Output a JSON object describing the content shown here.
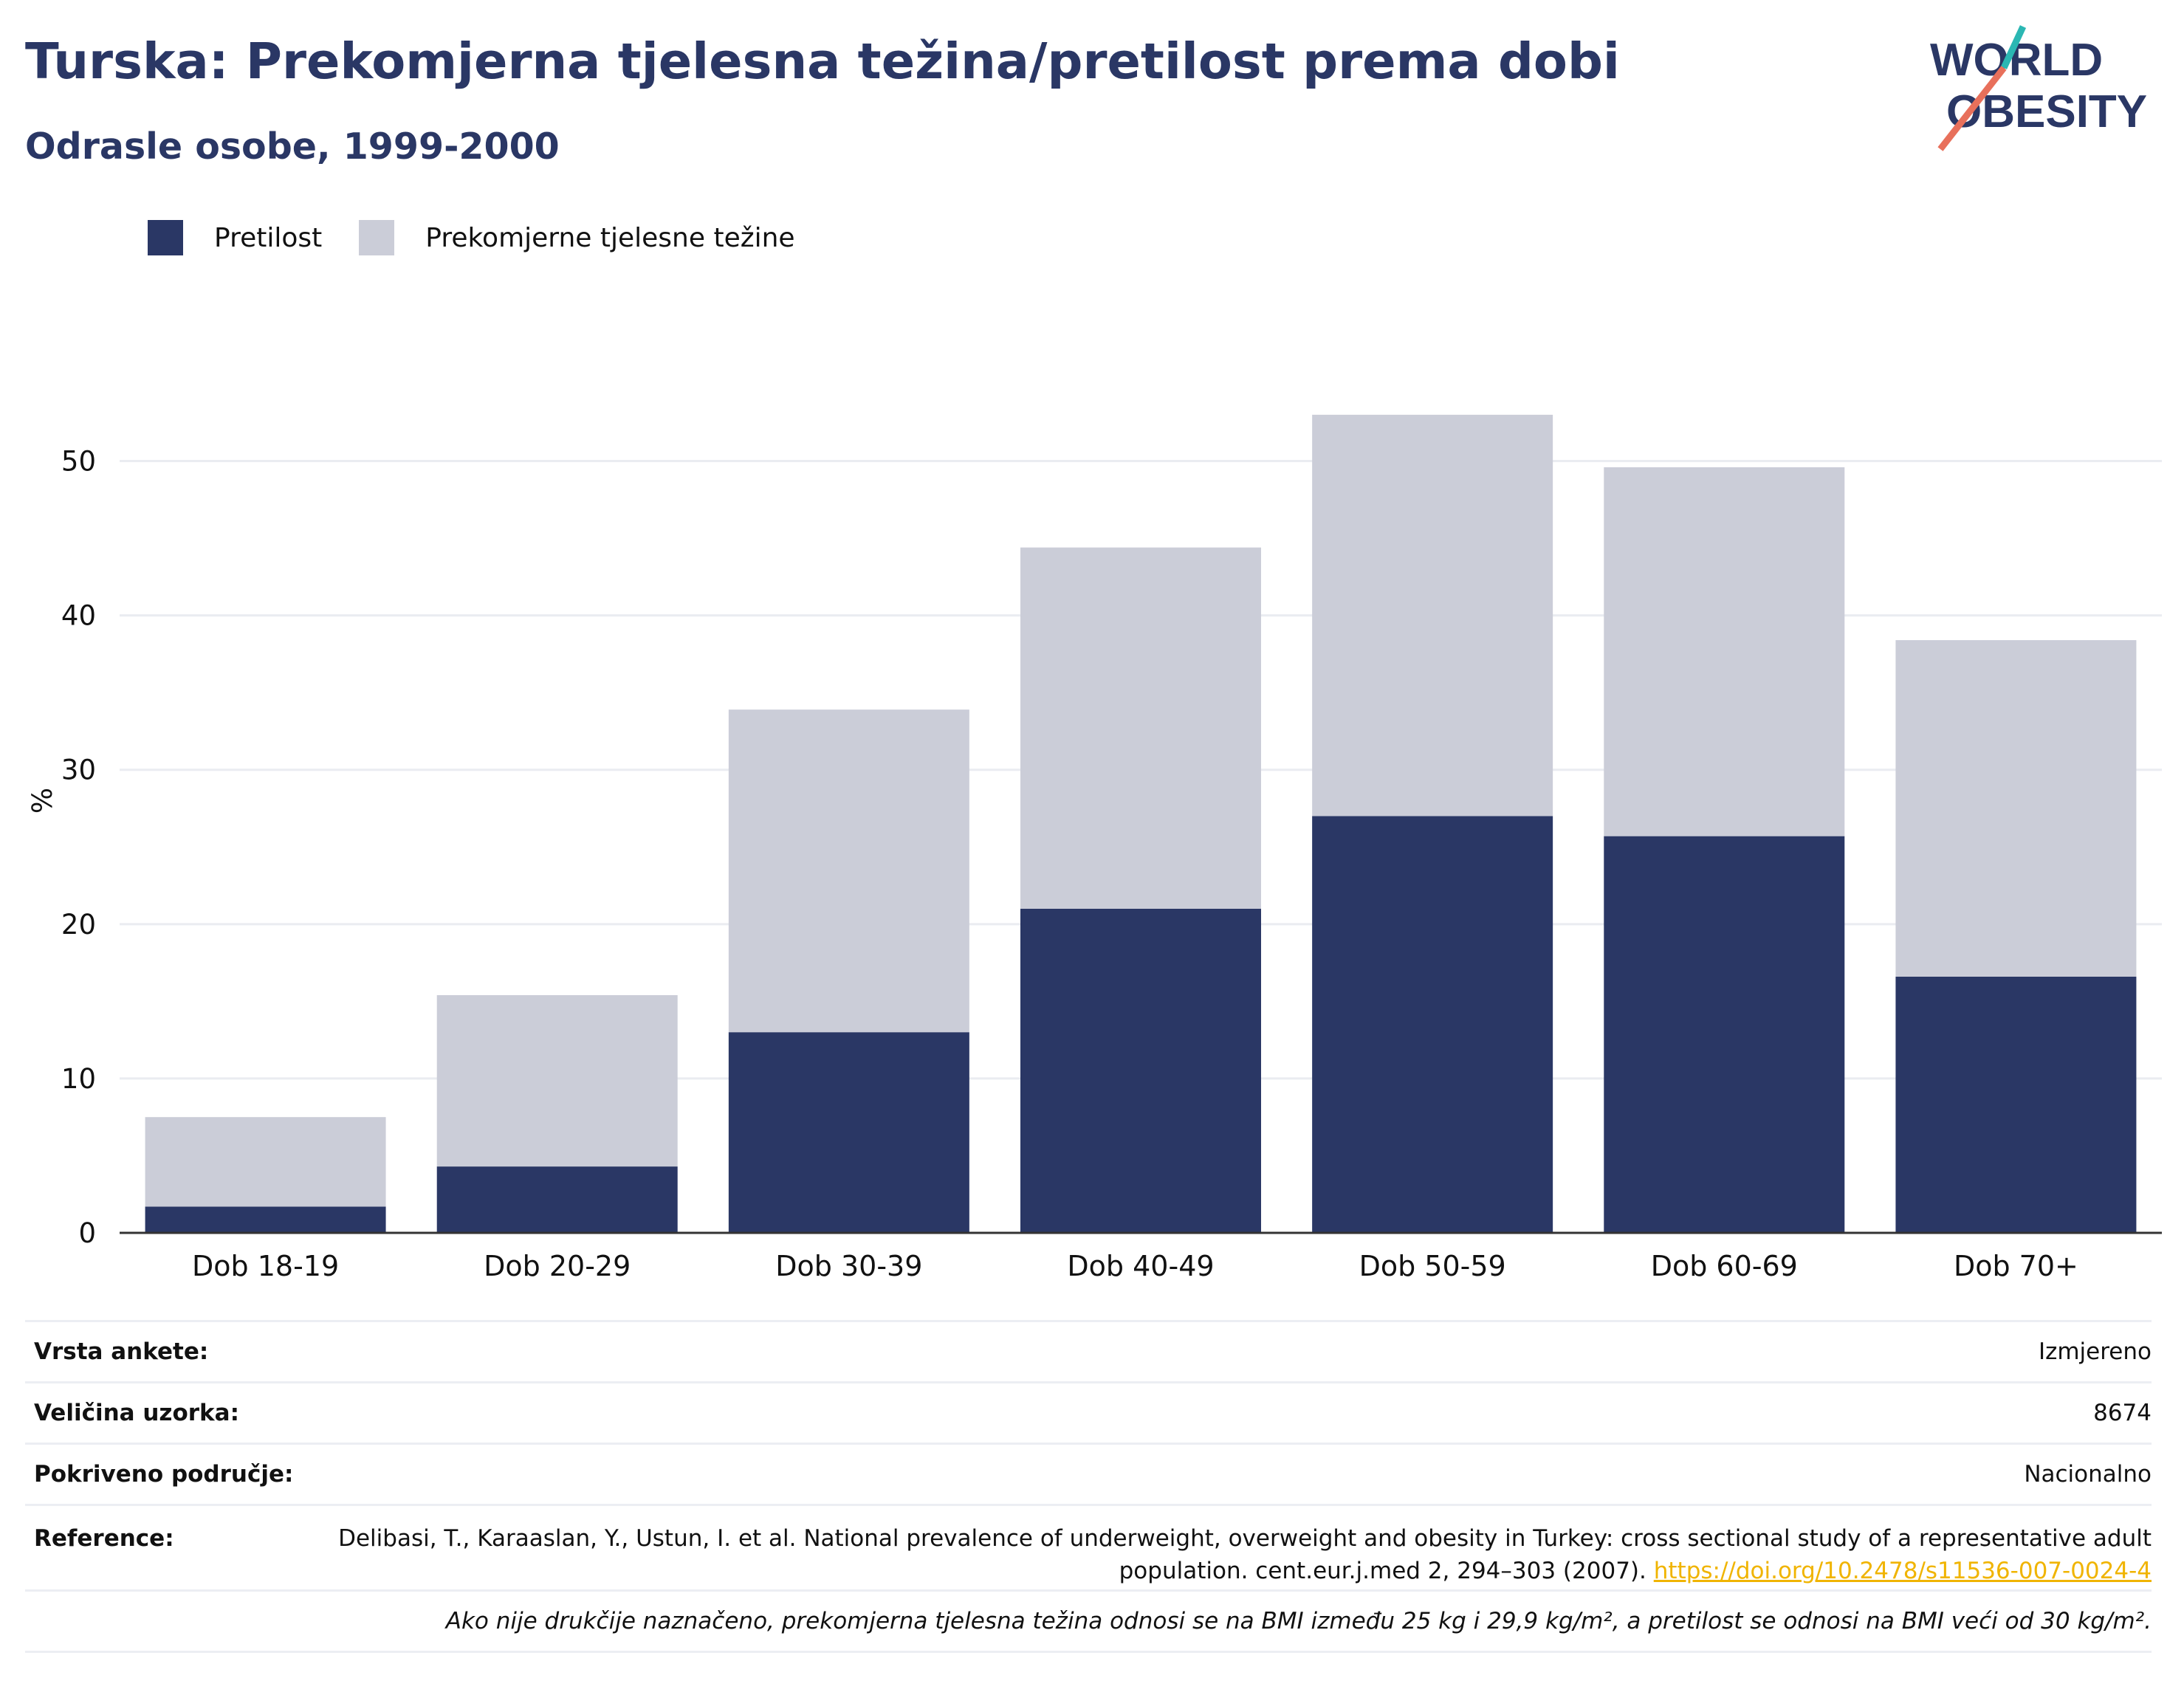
{
  "header": {
    "title": "Turska: Prekomjerna tjelesna težina/pretilost prema dobi",
    "subtitle": "Odrasle osobe, 1999-2000"
  },
  "logo": {
    "line1": "WORLD",
    "line2": "OBESITY"
  },
  "colors": {
    "obesity": "#2a3765",
    "overweight": "#cbcdd8",
    "title": "#2a3765",
    "link": "#f0b400",
    "logo_teal": "#2bb7b3",
    "logo_coral": "#e8705b"
  },
  "chart_data": {
    "type": "bar",
    "stacked": true,
    "categories": [
      "Dob 18-19",
      "Dob 20-29",
      "Dob 30-39",
      "Dob 40-49",
      "Dob 50-59",
      "Dob 60-69",
      "Dob 70+"
    ],
    "series": [
      {
        "name": "Pretilost",
        "values": [
          1.7,
          4.3,
          13.0,
          21.0,
          27.0,
          25.7,
          16.6
        ]
      },
      {
        "name": "Prekomjerne tjelesne težine",
        "values": [
          5.8,
          11.1,
          20.9,
          23.4,
          26.0,
          23.9,
          21.8
        ]
      }
    ],
    "ylabel": "%",
    "ylim": [
      0,
      55
    ],
    "yticks": [
      0,
      10,
      20,
      30,
      40,
      50
    ],
    "grid": true,
    "legend": "top-left"
  },
  "info": {
    "rows": [
      {
        "label": "Vrsta ankete:",
        "value": "Izmjereno"
      },
      {
        "label": "Veličina uzorka:",
        "value": "8674"
      },
      {
        "label": "Pokriveno područje:",
        "value": "Nacionalno"
      }
    ],
    "reference_label": "Reference:",
    "reference_text": "Delibasi, T., Karaaslan, Y., Ustun, I. et al. National prevalence of underweight, overweight and obesity in Turkey: cross sectional study of a representative adult population. cent.eur.j.med 2, 294–303 (2007). ",
    "reference_link": "https://doi.org/10.2478/s11536-007-0024-4",
    "note": "Ako nije drukčije naznačeno, prekomjerna tjelesna težina odnosi se na BMI između 25 kg i 29,9 kg/m², a pretilost se odnosi na BMI veći od 30 kg/m²."
  }
}
